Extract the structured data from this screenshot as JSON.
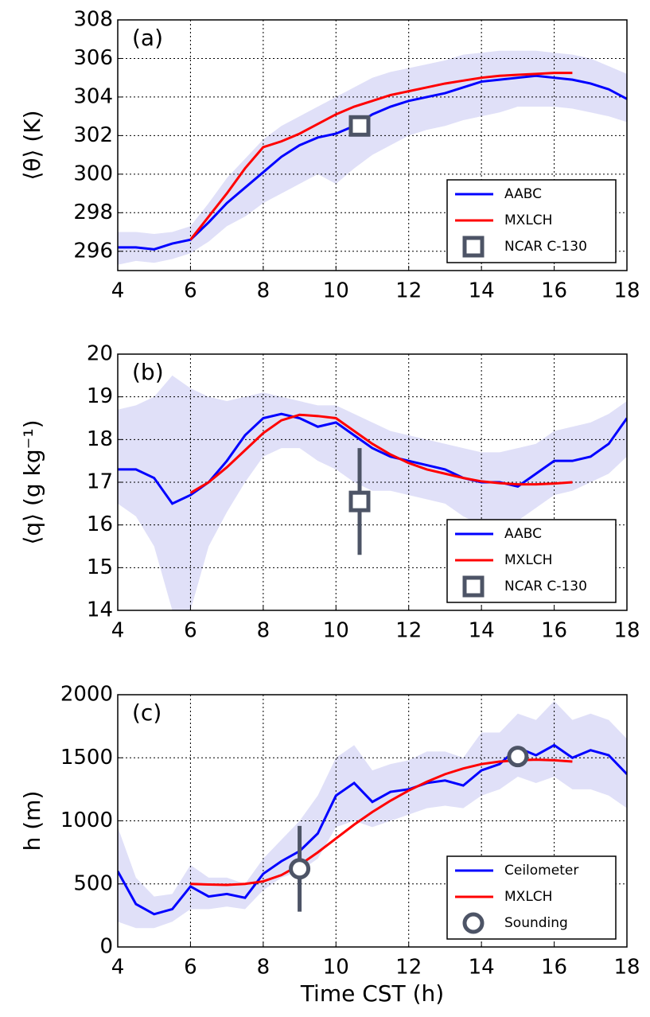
{
  "chart_data": [
    {
      "type": "line",
      "panel_label": "(a)",
      "ylabel": "⟨θ⟩ (K)",
      "legend": "lower right",
      "grid": true,
      "xlim": [
        4,
        18
      ],
      "xticks": [
        4,
        6,
        8,
        10,
        12,
        14,
        16,
        18
      ],
      "ylim": [
        295,
        308
      ],
      "yticks": [
        296,
        298,
        300,
        302,
        304,
        306,
        308
      ],
      "series": [
        {
          "name": "AABC",
          "color": "#0000ff",
          "band_color": "#e0e0f8",
          "x": [
            4,
            4.5,
            5,
            5.5,
            6,
            6.5,
            7,
            7.5,
            8,
            8.5,
            9,
            9.5,
            10,
            10.5,
            11,
            11.5,
            12,
            12.5,
            13,
            13.5,
            14,
            14.5,
            15,
            15.5,
            16,
            16.5,
            17,
            17.5,
            18
          ],
          "values": [
            296.2,
            296.2,
            296.1,
            296.4,
            296.6,
            297.5,
            298.5,
            299.3,
            300.1,
            300.9,
            301.5,
            301.9,
            302.1,
            302.5,
            303.1,
            303.5,
            303.8,
            304.0,
            304.2,
            304.5,
            304.8,
            304.9,
            305.0,
            305.1,
            305.0,
            304.9,
            304.7,
            304.4,
            303.9
          ],
          "lower": [
            295.3,
            295.5,
            295.4,
            295.6,
            295.9,
            296.5,
            297.3,
            297.8,
            298.5,
            299,
            299.5,
            300,
            299.5,
            300.3,
            301,
            301.5,
            302,
            302.3,
            302.5,
            302.8,
            303,
            303.2,
            303.5,
            303.5,
            303.5,
            303.4,
            303.2,
            303,
            302.7
          ],
          "upper": [
            297,
            297,
            296.9,
            297,
            297.3,
            298.5,
            299.8,
            300.8,
            301.8,
            302.5,
            303,
            303.5,
            304,
            304.5,
            305,
            305.3,
            305.5,
            305.7,
            305.9,
            306.2,
            306.3,
            306.4,
            306.4,
            306.4,
            306.3,
            306.2,
            306,
            305.6,
            305.2
          ]
        },
        {
          "name": "MXLCH",
          "color": "#ff0000",
          "x": [
            6,
            6.5,
            7,
            7.5,
            8,
            8.5,
            9,
            9.5,
            10,
            10.5,
            11,
            11.5,
            12,
            12.5,
            13,
            13.5,
            14,
            14.5,
            15,
            15.5,
            16,
            16.5
          ],
          "values": [
            296.6,
            297.8,
            299,
            300.3,
            301.4,
            301.7,
            302.1,
            302.6,
            303.1,
            303.5,
            303.8,
            304.1,
            304.3,
            304.5,
            304.7,
            304.85,
            305,
            305.1,
            305.15,
            305.2,
            305.25,
            305.25
          ]
        },
        {
          "name": "NCAR C-130",
          "color": "#4d5466",
          "marker": "square",
          "x": [
            10.65
          ],
          "values": [
            302.5
          ]
        }
      ]
    },
    {
      "type": "line",
      "panel_label": "(b)",
      "ylabel": "⟨q⟩ (g kg⁻¹)",
      "legend": "lower right",
      "grid": true,
      "xlim": [
        4,
        18
      ],
      "xticks": [
        4,
        6,
        8,
        10,
        12,
        14,
        16,
        18
      ],
      "ylim": [
        14,
        20
      ],
      "yticks": [
        14,
        15,
        16,
        17,
        18,
        19,
        20
      ],
      "series": [
        {
          "name": "AABC",
          "color": "#0000ff",
          "band_color": "#e0e0f8",
          "x": [
            4,
            4.5,
            5,
            5.5,
            6,
            6.5,
            7,
            7.5,
            8,
            8.5,
            9,
            9.5,
            10,
            10.5,
            11,
            11.5,
            12,
            12.5,
            13,
            13.5,
            14,
            14.5,
            15,
            15.5,
            16,
            16.5,
            17,
            17.5,
            18
          ],
          "values": [
            17.3,
            17.3,
            17.1,
            16.5,
            16.7,
            17.0,
            17.5,
            18.1,
            18.5,
            18.6,
            18.5,
            18.3,
            18.4,
            18.1,
            17.8,
            17.6,
            17.5,
            17.4,
            17.3,
            17.1,
            17.0,
            17.0,
            16.9,
            17.2,
            17.5,
            17.5,
            17.6,
            17.9,
            18.5
          ],
          "lower": [
            16.5,
            16.2,
            15.5,
            14,
            14,
            15.5,
            16.3,
            17,
            17.6,
            17.8,
            17.8,
            17.5,
            17.3,
            17,
            16.8,
            16.8,
            16.7,
            16.6,
            16.5,
            16.2,
            16,
            16,
            16.1,
            16.4,
            16.7,
            16.8,
            17,
            17.2,
            17.6
          ],
          "upper": [
            18.7,
            18.8,
            19,
            19.5,
            19.2,
            19,
            18.9,
            19,
            19.1,
            19,
            18.9,
            18.8,
            18.8,
            18.6,
            18.4,
            18.2,
            18.1,
            18,
            17.9,
            17.8,
            17.7,
            17.7,
            17.8,
            17.9,
            18.2,
            18.3,
            18.4,
            18.6,
            18.9
          ]
        },
        {
          "name": "MXLCH",
          "color": "#ff0000",
          "x": [
            6,
            6.5,
            7,
            7.5,
            8,
            8.5,
            9,
            9.5,
            10,
            10.5,
            11,
            11.5,
            12,
            12.5,
            13,
            13.5,
            14,
            14.5,
            15,
            15.5,
            16,
            16.5
          ],
          "values": [
            16.75,
            17.0,
            17.35,
            17.75,
            18.15,
            18.45,
            18.58,
            18.55,
            18.5,
            18.2,
            17.9,
            17.65,
            17.45,
            17.3,
            17.2,
            17.1,
            17.02,
            16.98,
            16.95,
            16.95,
            16.97,
            17.0
          ]
        },
        {
          "name": "NCAR C-130",
          "color": "#4d5466",
          "marker": "square",
          "x": [
            10.65
          ],
          "values": [
            16.55
          ],
          "errors": [
            1.25
          ]
        }
      ]
    },
    {
      "type": "line",
      "panel_label": "(c)",
      "ylabel": "h (m)",
      "xlabel": "Time CST (h)",
      "legend": "lower right",
      "grid": true,
      "xlim": [
        4,
        18
      ],
      "xticks": [
        4,
        6,
        8,
        10,
        12,
        14,
        16,
        18
      ],
      "ylim": [
        0,
        2000
      ],
      "yticks": [
        0,
        500,
        1000,
        1500,
        2000
      ],
      "series": [
        {
          "name": "Ceilometer",
          "color": "#0000ff",
          "band_color": "#e0e0f8",
          "x": [
            4,
            4.5,
            5,
            5.5,
            6,
            6.5,
            7,
            7.5,
            8,
            8.5,
            9,
            9.5,
            10,
            10.5,
            11,
            11.5,
            12,
            12.5,
            13,
            13.5,
            14,
            14.5,
            15,
            15.5,
            16,
            16.5,
            17,
            17.5,
            18
          ],
          "values": [
            600,
            340,
            260,
            300,
            480,
            400,
            420,
            390,
            580,
            680,
            760,
            900,
            1200,
            1300,
            1150,
            1230,
            1250,
            1300,
            1320,
            1280,
            1400,
            1450,
            1580,
            1520,
            1600,
            1500,
            1560,
            1520,
            1370
          ],
          "lower": [
            200,
            150,
            150,
            200,
            300,
            300,
            320,
            300,
            450,
            550,
            600,
            700,
            950,
            1000,
            950,
            1000,
            1050,
            1100,
            1120,
            1100,
            1200,
            1250,
            1350,
            1300,
            1350,
            1250,
            1250,
            1200,
            1100
          ],
          "upper": [
            950,
            550,
            400,
            420,
            650,
            550,
            550,
            500,
            700,
            850,
            1000,
            1200,
            1500,
            1600,
            1400,
            1450,
            1480,
            1550,
            1550,
            1500,
            1700,
            1700,
            1850,
            1800,
            1950,
            1800,
            1850,
            1800,
            1650
          ]
        },
        {
          "name": "MXLCH",
          "color": "#ff0000",
          "x": [
            6,
            6.5,
            7,
            7.5,
            8,
            8.5,
            9,
            9.5,
            10,
            10.5,
            11,
            11.5,
            12,
            12.5,
            13,
            13.5,
            14,
            14.5,
            15,
            15.5,
            16,
            16.5
          ],
          "values": [
            500,
            495,
            492,
            500,
            520,
            570,
            650,
            750,
            860,
            970,
            1070,
            1160,
            1240,
            1310,
            1370,
            1415,
            1450,
            1470,
            1480,
            1485,
            1480,
            1470
          ]
        },
        {
          "name": "Sounding",
          "color": "#4d5466",
          "marker": "circle",
          "x": [
            9,
            15
          ],
          "values": [
            620,
            1510
          ],
          "errors": [
            340,
            null
          ]
        }
      ]
    }
  ]
}
